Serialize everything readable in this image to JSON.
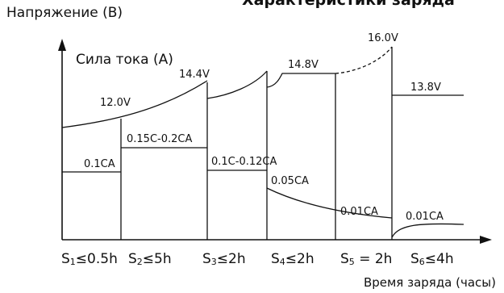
{
  "title_fragment": "Характеристики заряда",
  "axes": {
    "y_title": "Напряжение (В)",
    "y_subtitle": "Сила тока (А)",
    "x_title": "Время заряда (часы)"
  },
  "voltage_labels": [
    "12.0V",
    "14.4V",
    "14.8V",
    "16.0V",
    "13.8V"
  ],
  "current_labels": [
    "0.1CA",
    "0.15C-0.2CA",
    "0.1C-0.12CA",
    "0.05CA",
    "0.01CA",
    "0.01CA"
  ],
  "stages": [
    {
      "base": "S",
      "sub": "1",
      "rest": "≤0.5h"
    },
    {
      "base": "S",
      "sub": "2",
      "rest": "≤5h"
    },
    {
      "base": "S",
      "sub": "3",
      "rest": "≤2h"
    },
    {
      "base": "S",
      "sub": "4",
      "rest": "≤2h"
    },
    {
      "base": "S",
      "sub": "5",
      "rest": " = 2h"
    },
    {
      "base": "S",
      "sub": "6",
      "rest": "≤4h"
    }
  ],
  "colors": {
    "ink": "#111111",
    "background": "#ffffff"
  }
}
